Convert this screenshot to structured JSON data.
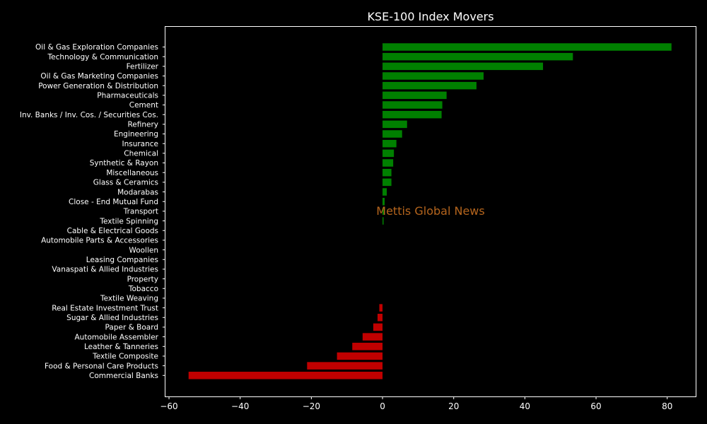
{
  "chart_data": {
    "type": "bar",
    "orientation": "horizontal",
    "title": "KSE-100 Index Movers",
    "watermark": "Mettis Global News",
    "xlim": [
      -61,
      88
    ],
    "xticks": [
      -60,
      -40,
      -20,
      0,
      20,
      40,
      60,
      80
    ],
    "xtick_labels": [
      "−60",
      "−40",
      "−20",
      "0",
      "20",
      "40",
      "60",
      "80"
    ],
    "grid": false,
    "colors": {
      "positive": "#008000",
      "negative": "#c00000",
      "background": "#000000",
      "axes": "#ffffff",
      "watermark": "#b5651d"
    },
    "categories": [
      "Oil & Gas Exploration Companies",
      "Technology & Communication",
      "Fertilizer",
      "Oil & Gas Marketing Companies",
      "Power Generation & Distribution",
      "Pharmaceuticals",
      "Cement",
      "Inv. Banks / Inv. Cos. / Securities Cos.",
      "Refinery",
      "Engineering",
      "Insurance",
      "Chemical",
      "Synthetic & Rayon",
      "Miscellaneous",
      "Glass & Ceramics",
      "Modarabas",
      "Close - End Mutual Fund",
      "Transport",
      "Textile Spinning",
      "Cable & Electrical Goods",
      "Automobile Parts & Accessories",
      "Woollen",
      "Leasing Companies",
      "Vanaspati & Allied Industries",
      "Property",
      "Tobacco",
      "Textile Weaving",
      "Real Estate Investment Trust",
      "Sugar & Allied Industries",
      "Paper & Board",
      "Automobile Assembler",
      "Leather & Tanneries",
      "Textile Composite",
      "Food & Personal Care Products",
      "Commercial Banks"
    ],
    "values": [
      81.2,
      53.5,
      45.1,
      28.4,
      26.4,
      18.0,
      16.8,
      16.6,
      6.9,
      5.5,
      3.9,
      3.2,
      3.0,
      2.5,
      2.5,
      1.2,
      0.6,
      0.4,
      0.3,
      0,
      0,
      0,
      0,
      0,
      0,
      0,
      0,
      -0.9,
      -1.4,
      -2.6,
      -5.6,
      -8.5,
      -12.8,
      -21.2,
      -54.5
    ]
  }
}
